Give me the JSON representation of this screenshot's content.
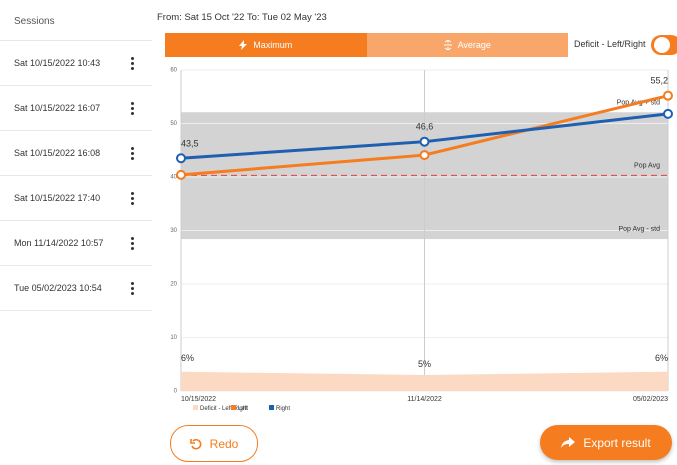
{
  "sidebar": {
    "title": "Sessions",
    "sessions": [
      "Sat 10/15/2022 10:43",
      "Sat 10/15/2022 16:07",
      "Sat 10/15/2022 16:08",
      "Sat 10/15/2022 17:40",
      "Mon 11/14/2022 10:57",
      "Tue 05/02/2023 10:54"
    ]
  },
  "date_range": "From: Sat 15 Oct '22 To: Tue 02 May '23",
  "tabs": [
    "Maximum",
    "Average"
  ],
  "toggle_label": "Deficit - Left/Right",
  "buttons": {
    "redo": "Redo",
    "export": "Export result"
  },
  "chart_data": {
    "type": "line",
    "categories": [
      "10/15/2022",
      "11/14/2022",
      "05/02/2023"
    ],
    "ylim": [
      0,
      60
    ],
    "yticks": [
      0,
      10,
      20,
      30,
      40,
      50,
      60
    ],
    "y2lim": [
      0,
      100
    ],
    "grid": true,
    "reference": {
      "upper": 52.1,
      "lower": 28.4,
      "pop_avg": 40.3,
      "upper_label": "Pop Avg + std",
      "avg_label": "Pop Avg",
      "lower_label": "Pop Avg - std",
      "band_color": "#d3d3d3",
      "line_color": "#e04040"
    },
    "series": [
      {
        "name": "Deficit - Left/Right",
        "color": "#fbd9c2",
        "axis": "y2",
        "values": [
          6,
          5,
          6
        ],
        "value_labels": [
          "6%",
          "5%",
          "6%"
        ]
      },
      {
        "name": "Left",
        "color": "#f57c1f",
        "values": [
          40.4,
          44.1,
          55.2
        ],
        "value_labels": [
          null,
          null,
          "55,2"
        ]
      },
      {
        "name": "Right",
        "color": "#1f5fb0",
        "values": [
          43.5,
          46.6,
          51.8
        ],
        "value_labels": [
          "43,5",
          "46,6",
          null
        ]
      }
    ]
  }
}
